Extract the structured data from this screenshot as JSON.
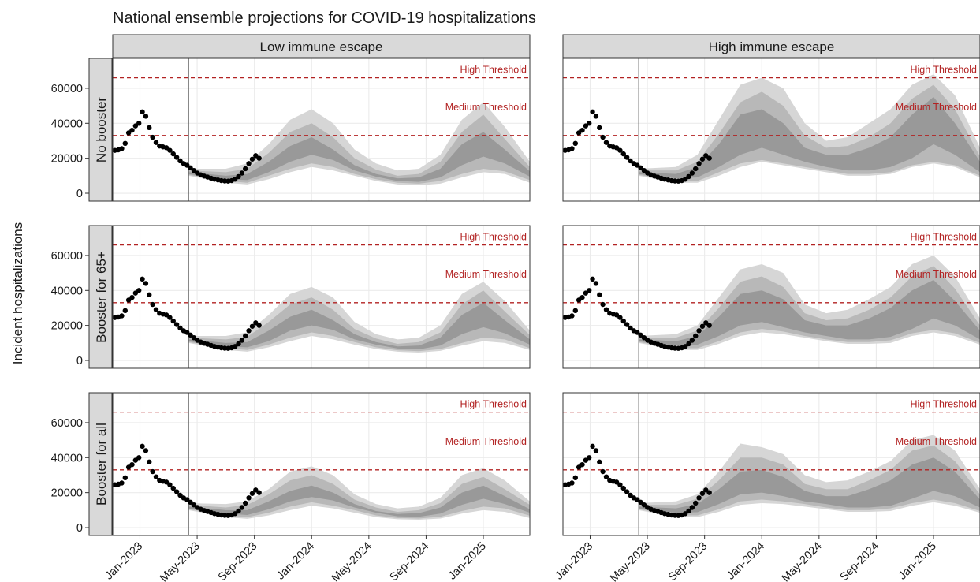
{
  "chart_data": {
    "type": "area",
    "title": "National ensemble projections for COVID-19 hospitalizations",
    "y_label": "Incident hospitalizations",
    "facet_cols": [
      "Low immune escape",
      "High immune escape"
    ],
    "facet_rows": [
      "No booster",
      "Booster for 65+",
      "Booster for all"
    ],
    "xlim": [
      -1.9,
      27.25
    ],
    "xticks": [
      {
        "value": 0,
        "label": "Jan-2023"
      },
      {
        "value": 4,
        "label": "May-2023"
      },
      {
        "value": 8,
        "label": "Sep-2023"
      },
      {
        "value": 12,
        "label": "Jan-2024"
      },
      {
        "value": 16,
        "label": "May-2024"
      },
      {
        "value": 20,
        "label": "Sep-2024"
      },
      {
        "value": 24,
        "label": "Jan-2025"
      }
    ],
    "ylim": [
      -4500,
      77100
    ],
    "yticks": [
      0,
      20000,
      40000,
      60000
    ],
    "grid": true,
    "vline_x": 3.4,
    "thresholds": [
      {
        "name": "High Threshold",
        "value": 66000,
        "color": "#b22222"
      },
      {
        "name": "Medium Threshold",
        "value": 33000,
        "color": "#b22222"
      }
    ],
    "observed": {
      "color": "#000000",
      "x": [
        -1.75,
        -1.51,
        -1.27,
        -1.03,
        -0.79,
        -0.55,
        -0.31,
        -0.07,
        0.17,
        0.41,
        0.65,
        0.89,
        1.13,
        1.37,
        1.61,
        1.85,
        2.09,
        2.33,
        2.57,
        2.81,
        3.05,
        3.29,
        3.53,
        3.77,
        4.01,
        4.25,
        4.49,
        4.73,
        4.97,
        5.21,
        5.45,
        5.69,
        5.93,
        6.17,
        6.41,
        6.65,
        6.89,
        7.13,
        7.37,
        7.61,
        7.85,
        8.09,
        8.33
      ],
      "values": [
        24500,
        24800,
        25500,
        28500,
        34500,
        36000,
        38500,
        40000,
        46500,
        44000,
        37500,
        32000,
        29000,
        27000,
        26500,
        26000,
        24500,
        22500,
        20500,
        18500,
        17000,
        16000,
        14500,
        13000,
        11500,
        10500,
        9800,
        9200,
        8600,
        8000,
        7600,
        7200,
        7000,
        6900,
        7200,
        8000,
        9500,
        11500,
        14000,
        17000,
        19500,
        21500,
        20000
      ]
    },
    "band_colors": [
      "#d6d6d6",
      "#b8b8b8",
      "#999999"
    ],
    "projection_x": [
      3.4,
      6,
      7.5,
      9,
      10.5,
      12,
      13.5,
      15,
      16.5,
      18,
      19.5,
      21,
      22.5,
      24,
      25.5,
      27.25
    ],
    "panels": [
      [
        [
          {
            "lower": [
              10000,
              6000,
              5000,
              8000,
              12000,
              15000,
              13000,
              10000,
              7000,
              5000,
              4500,
              5500,
              9000,
              12000,
              11000,
              6000
            ],
            "upper": [
              14000,
              14000,
              17000,
              28000,
              42000,
              48000,
              40000,
              25000,
              17000,
              13000,
              14000,
              22000,
              42000,
              52000,
              38000,
              18000
            ]
          },
          {
            "lower": [
              10500,
              7000,
              6000,
              10000,
              14000,
              17000,
              15000,
              11000,
              8000,
              6000,
              5500,
              7000,
              11000,
              14000,
              12500,
              7500
            ],
            "upper": [
              13000,
              12000,
              14000,
              23000,
              35000,
              40000,
              32000,
              20000,
              13500,
              10000,
              11000,
              18000,
              35000,
              45000,
              31000,
              15000
            ]
          },
          {
            "lower": [
              11000,
              8000,
              7500,
              12000,
              18000,
              22000,
              19000,
              13000,
              9500,
              7000,
              6500,
              9000,
              16000,
              21000,
              17000,
              9500
            ],
            "upper": [
              12000,
              10000,
              11000,
              18000,
              27000,
              32000,
              25000,
              16000,
              11000,
              8500,
              9000,
              14000,
              28000,
              35000,
              25000,
              12500
            ]
          }
        ],
        [
          {
            "lower": [
              10000,
              6000,
              6000,
              10000,
              15000,
              18000,
              16000,
              14000,
              12000,
              10000,
              10000,
              11000,
              15000,
              17000,
              15000,
              9000
            ],
            "upper": [
              14000,
              15000,
              22000,
              42000,
              62000,
              66000,
              60000,
              40000,
              30000,
              32000,
              40000,
              48000,
              62000,
              68000,
              56000,
              26000
            ]
          },
          {
            "lower": [
              10500,
              7000,
              7000,
              12000,
              17000,
              19000,
              17000,
              15000,
              13000,
              11000,
              11000,
              12000,
              16000,
              18000,
              16000,
              10000
            ],
            "upper": [
              13000,
              13000,
              18000,
              34000,
              52000,
              58000,
              50000,
              33000,
              26000,
              27000,
              32000,
              40000,
              54000,
              62000,
              48000,
              21000
            ]
          },
          {
            "lower": [
              11000,
              8500,
              9000,
              15000,
              22000,
              26000,
              22000,
              18000,
              15000,
              13000,
              13000,
              15000,
              20000,
              28000,
              22000,
              12000
            ],
            "upper": [
              12000,
              11000,
              15000,
              28000,
              45000,
              48000,
              40000,
              26000,
              22000,
              22000,
              26000,
              32000,
              45000,
              55000,
              40000,
              18000
            ]
          }
        ]
      ],
      [
        [
          {
            "lower": [
              10000,
              6000,
              5000,
              7500,
              11000,
              14000,
              12000,
              9000,
              6500,
              5000,
              4500,
              5500,
              8500,
              11000,
              10000,
              6000
            ],
            "upper": [
              14000,
              14000,
              16000,
              26000,
              38000,
              42000,
              36000,
              22000,
              15000,
              12000,
              13000,
              20000,
              38000,
              45000,
              34000,
              17000
            ]
          },
          {
            "lower": [
              10500,
              7000,
              6000,
              9000,
              13000,
              16000,
              14000,
              10500,
              7500,
              5800,
              5300,
              6500,
              10000,
              13000,
              12000,
              7000
            ],
            "upper": [
              13000,
              12000,
              13500,
              22000,
              32000,
              36000,
              29000,
              18000,
              12500,
              9500,
              10500,
              16000,
              32000,
              40000,
              28000,
              14500
            ]
          },
          {
            "lower": [
              11000,
              8000,
              7500,
              11000,
              17000,
              20000,
              17500,
              12000,
              9000,
              6800,
              6300,
              8500,
              15000,
              19000,
              15500,
              9000
            ],
            "upper": [
              12000,
              10000,
              10500,
              17000,
              25000,
              29000,
              23000,
              15000,
              10500,
              8000,
              8500,
              13000,
              26000,
              33000,
              23000,
              12000
            ]
          }
        ],
        [
          {
            "lower": [
              10000,
              6000,
              6000,
              9500,
              14000,
              16000,
              15000,
              13000,
              11000,
              9500,
              9500,
              10000,
              14000,
              16000,
              14000,
              9000
            ],
            "upper": [
              14000,
              15000,
              20000,
              36000,
              52000,
              55000,
              50000,
              32000,
              27000,
              29000,
              35000,
              42000,
              55000,
              60000,
              48000,
              24000
            ]
          },
          {
            "lower": [
              10500,
              7000,
              7000,
              11000,
              16000,
              18000,
              16500,
              14000,
              12000,
              10500,
              10500,
              11500,
              15500,
              17500,
              15500,
              10000
            ],
            "upper": [
              13000,
              13000,
              17000,
              30000,
              45000,
              48000,
              42000,
              27000,
              23000,
              24000,
              29000,
              36000,
              48000,
              54000,
              41000,
              20000
            ]
          },
          {
            "lower": [
              11000,
              8500,
              9000,
              14000,
              20000,
              22000,
              19000,
              16000,
              14000,
              12000,
              12000,
              13500,
              18000,
              24000,
              20000,
              12000
            ],
            "upper": [
              12000,
              11000,
              14000,
              25000,
              38000,
              40000,
              35000,
              23000,
              20000,
              20000,
              24000,
              30000,
              40000,
              46000,
              34000,
              17000
            ]
          }
        ]
      ],
      [
        [
          {
            "lower": [
              10000,
              6000,
              5000,
              7000,
              10000,
              12500,
              11000,
              8500,
              6000,
              4800,
              4500,
              5200,
              8000,
              10000,
              9000,
              5500
            ],
            "upper": [
              14000,
              13500,
              15000,
              22000,
              32000,
              35000,
              30000,
              19000,
              13500,
              11000,
              12000,
              17000,
              30000,
              34000,
              27000,
              15000
            ]
          },
          {
            "lower": [
              10500,
              7000,
              6000,
              8500,
              12000,
              14500,
              12500,
              10000,
              7000,
              5500,
              5200,
              6200,
              9500,
              12000,
              11000,
              6800
            ],
            "upper": [
              13000,
              11500,
              13000,
              19000,
              27000,
              30000,
              25000,
              16000,
              11500,
              9000,
              10000,
              14000,
              25000,
              29000,
              22000,
              13000
            ]
          },
          {
            "lower": [
              11000,
              8000,
              7200,
              10500,
              15000,
              17500,
              15500,
              11500,
              8500,
              6500,
              6200,
              8000,
              13000,
              16500,
              13500,
              8500
            ],
            "upper": [
              12000,
              10000,
              10000,
              15000,
              21000,
              24000,
              20000,
              13500,
              9500,
              7800,
              8300,
              11500,
              20000,
              24000,
              18000,
              10500
            ]
          }
        ],
        [
          {
            "lower": [
              10000,
              6000,
              6000,
              9000,
              13000,
              14000,
              13500,
              12000,
              10500,
              9000,
              9000,
              9500,
              12500,
              14500,
              12500,
              8500
            ],
            "upper": [
              14000,
              15000,
              19000,
              32000,
              48000,
              46000,
              42000,
              30000,
              26000,
              27000,
              32000,
              38000,
              50000,
              53000,
              44000,
              22000
            ]
          },
          {
            "lower": [
              10500,
              7000,
              7000,
              10500,
              15000,
              16000,
              15000,
              13500,
              11500,
              10000,
              10000,
              11000,
              14000,
              16000,
              14000,
              9500
            ],
            "upper": [
              13000,
              13000,
              16500,
              27000,
              40000,
              40000,
              36000,
              25000,
              22000,
              22000,
              27000,
              33000,
              44000,
              47000,
              38000,
              19000
            ]
          },
          {
            "lower": [
              11000,
              8500,
              8800,
              13500,
              19000,
              20000,
              18000,
              15000,
              13500,
              11500,
              11500,
              12500,
              16500,
              21000,
              18000,
              11500
            ],
            "upper": [
              12000,
              11000,
              13500,
              22000,
              32000,
              33000,
              29000,
              21000,
              18000,
              18000,
              22000,
              27000,
              36000,
              40000,
              32000,
              16000
            ]
          }
        ]
      ]
    ]
  }
}
